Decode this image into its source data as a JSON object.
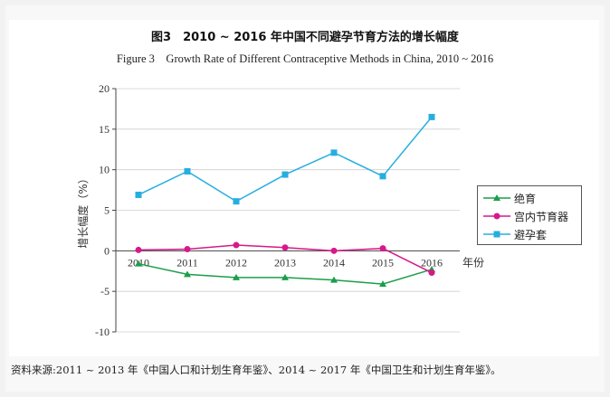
{
  "figure": {
    "title_cn": "图3　2010 ~ 2016 年中国不同避孕节育方法的增长幅度",
    "title_en": "Figure 3　Growth Rate of Different Contraceptive Methods in China, 2010 ~ 2016",
    "source": "资料来源:2011 ~ 2013 年《中国人口和计划生育年鉴》、2014 ~ 2017 年《中国卫生和计划生育年鉴》。"
  },
  "colors": {
    "jueyu": "#1a9e4a",
    "iud": "#d6198a",
    "condom": "#27aee0",
    "grid": "#cfcfcf",
    "axis": "#444444"
  },
  "chart_data": {
    "type": "line",
    "x": [
      "2010",
      "2011",
      "2012",
      "2013",
      "2014",
      "2015",
      "2016"
    ],
    "xlabel": "年份",
    "ylabel": "增长幅度（%）",
    "ylim": [
      -10,
      20
    ],
    "yticks": [
      "-10",
      "-5",
      "0",
      "5",
      "10",
      "15",
      "20"
    ],
    "grid": true,
    "legend_position": "right",
    "series": [
      {
        "name": "绝育",
        "marker": "triangle",
        "values": [
          -1.6,
          -2.9,
          -3.3,
          -3.3,
          -3.6,
          -4.1,
          -2.3
        ]
      },
      {
        "name": "宫内节育器",
        "marker": "circle",
        "values": [
          0.1,
          0.2,
          0.7,
          0.4,
          0.0,
          0.3,
          -2.7
        ]
      },
      {
        "name": "避孕套",
        "marker": "square",
        "values": [
          6.9,
          9.8,
          6.1,
          9.4,
          12.1,
          9.2,
          16.5
        ]
      }
    ]
  }
}
